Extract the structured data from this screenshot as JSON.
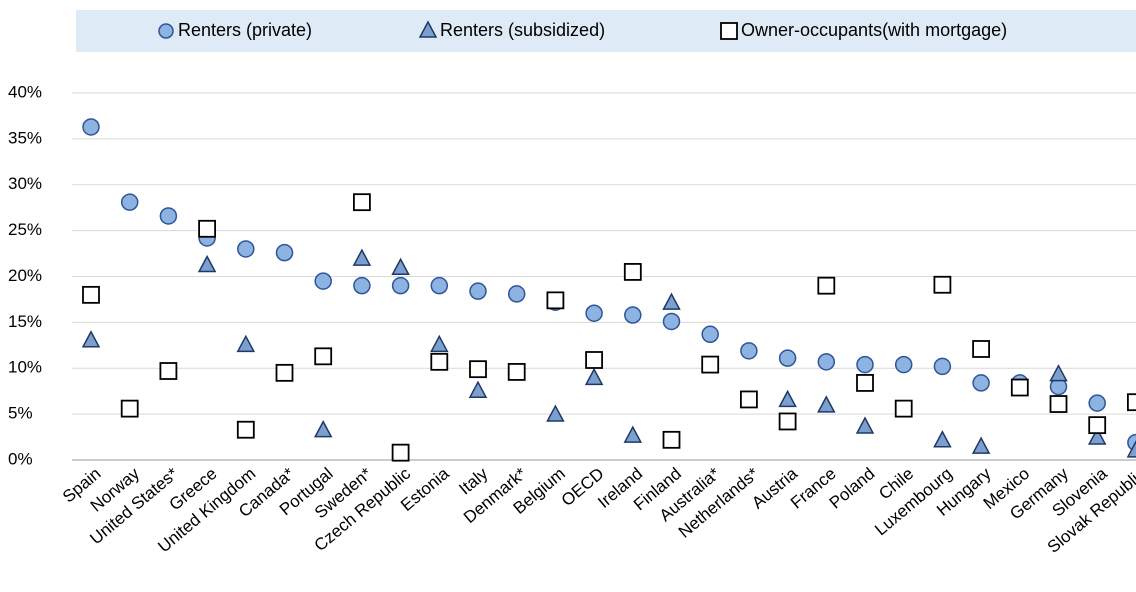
{
  "chart_data": {
    "type": "scatter",
    "categories": [
      "Spain",
      "Norway",
      "United States*",
      "Greece",
      "United Kingdom",
      "Canada*",
      "Portugal",
      "Sweden*",
      "Czech Republic",
      "Estonia",
      "Italy",
      "Denmark*",
      "Belgium",
      "OECD",
      "Ireland",
      "Finland",
      "Australia*",
      "Netherlands*",
      "Austria",
      "France",
      "Poland",
      "Chile",
      "Luxembourg",
      "Hungary",
      "Mexico",
      "Germany",
      "Slovenia",
      "Slovak Republic"
    ],
    "series": [
      {
        "name": "Renters (private)",
        "marker": "circle",
        "color": "#8db3e2",
        "values": [
          36.3,
          28.1,
          26.6,
          24.2,
          23.0,
          22.6,
          19.5,
          19.0,
          19.0,
          19.0,
          18.4,
          18.1,
          17.2,
          16.0,
          15.8,
          15.1,
          13.7,
          11.9,
          11.1,
          10.7,
          10.4,
          10.4,
          10.2,
          8.4,
          8.4,
          8.0,
          6.2,
          1.9
        ]
      },
      {
        "name": "Renters (subsidized)",
        "marker": "triangle",
        "color": "#7ba0cf",
        "values": [
          13.0,
          null,
          null,
          21.2,
          12.5,
          null,
          3.2,
          21.9,
          20.9,
          12.5,
          7.5,
          null,
          4.9,
          8.9,
          2.6,
          17.1,
          null,
          null,
          6.5,
          5.9,
          3.6,
          null,
          2.1,
          1.4,
          null,
          9.3,
          2.4,
          1.0
        ]
      },
      {
        "name": "Owner-occupants(with mortgage)",
        "marker": "square",
        "color": "#ffffff",
        "values": [
          18.0,
          5.6,
          9.7,
          25.2,
          3.3,
          9.5,
          11.3,
          28.1,
          0.8,
          10.7,
          9.9,
          9.6,
          17.4,
          10.9,
          20.5,
          2.2,
          10.4,
          6.6,
          4.2,
          19.0,
          8.4,
          5.6,
          19.1,
          12.1,
          7.9,
          6.1,
          3.8,
          6.3
        ]
      }
    ],
    "ylim": [
      0,
      40
    ],
    "yticks": [
      {
        "value": 0,
        "label": "0%"
      },
      {
        "value": 5,
        "label": "5%"
      },
      {
        "value": 10,
        "label": "10%"
      },
      {
        "value": 15,
        "label": "15%"
      },
      {
        "value": 20,
        "label": "20%"
      },
      {
        "value": 25,
        "label": "25%"
      },
      {
        "value": 30,
        "label": "30%"
      },
      {
        "value": 35,
        "label": "35%"
      },
      {
        "value": 40,
        "label": "40%"
      }
    ],
    "grid": true,
    "legend": "top"
  }
}
